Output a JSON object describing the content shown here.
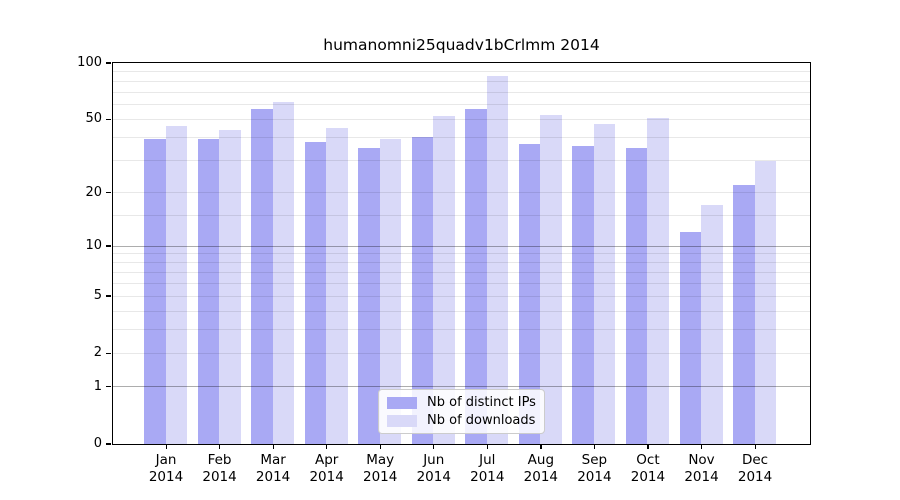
{
  "title": "humanomni25quadv1bCrlmm 2014",
  "chart_data": {
    "type": "bar",
    "title": "humanomni25quadv1bCrlmm 2014",
    "yscale": "log1p",
    "ylim": [
      0,
      100
    ],
    "grid": "horizontal",
    "categories": [
      "Jan",
      "Feb",
      "Mar",
      "Apr",
      "May",
      "Jun",
      "Jul",
      "Aug",
      "Sep",
      "Oct",
      "Nov",
      "Dec"
    ],
    "category_year": "2014",
    "series": [
      {
        "name": "Nb of distinct IPs",
        "color": "#a9a9f4",
        "values": [
          39,
          39,
          57,
          38,
          35,
          40,
          57,
          37,
          36,
          35,
          12,
          22
        ]
      },
      {
        "name": "Nb of downloads",
        "color": "#d9d9f8",
        "values": [
          46,
          44,
          62,
          45,
          39,
          52,
          85,
          53,
          47,
          51,
          17,
          30
        ]
      }
    ],
    "ytick_labels": [
      "100",
      "50",
      "20",
      "10",
      "5",
      "2",
      "1",
      "0"
    ],
    "ytick_values": [
      100,
      50,
      20,
      10,
      5,
      2,
      1,
      0
    ],
    "grid_minor_values": [
      2,
      3,
      4,
      5,
      6,
      7,
      8,
      9,
      15,
      20,
      30,
      40,
      50,
      60,
      70,
      80,
      90
    ],
    "grid_major_values": [
      1,
      10
    ],
    "legend_position": "inside-bottom-center"
  },
  "colors": {
    "bar_dark": "#a9a9f4",
    "bar_light": "#d9d9f8",
    "grid_minor": "rgba(0, 0, 0, 0.09)",
    "grid_major": "rgba(0, 0, 0, 0.32)",
    "axis": "#000000",
    "background": "#ffffff"
  }
}
